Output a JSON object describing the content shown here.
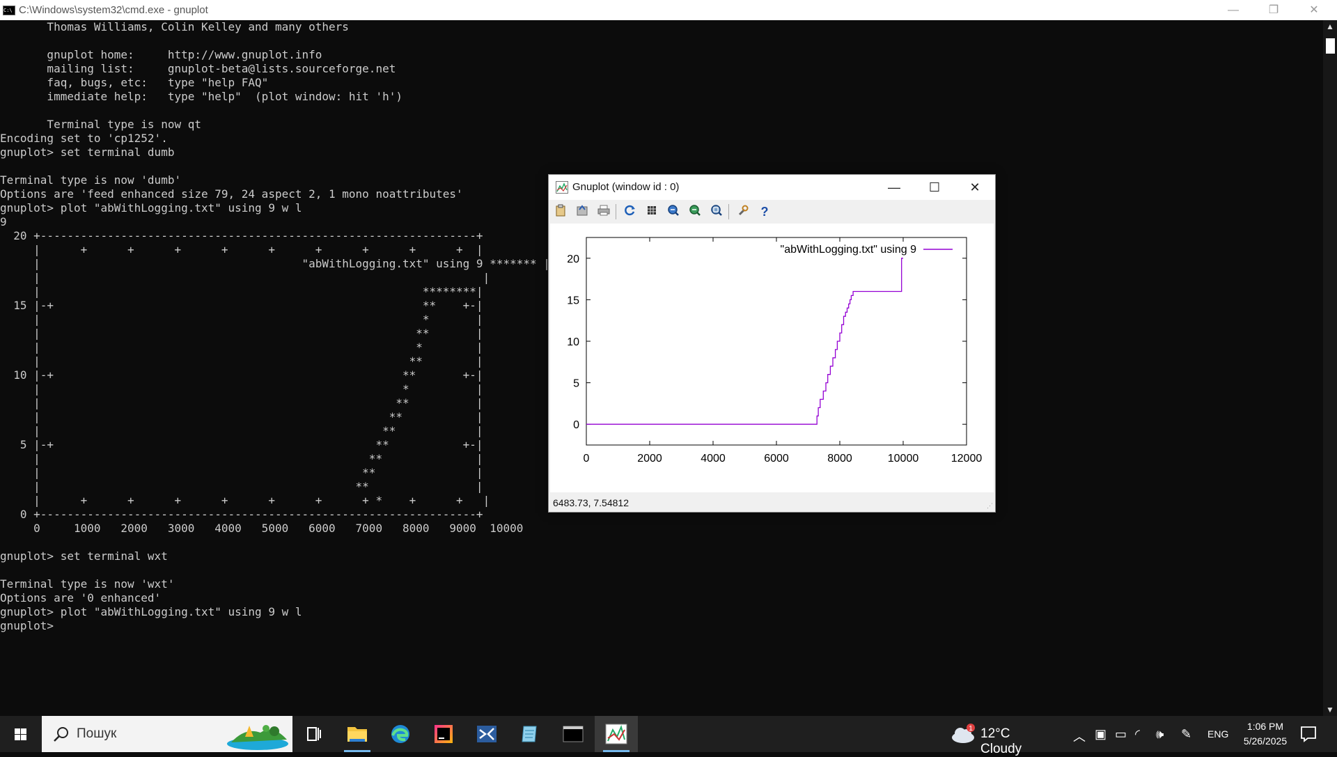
{
  "cmd": {
    "title": "C:\\Windows\\system32\\cmd.exe - gnuplot",
    "icon": "cmd-icon",
    "icon_text": "C:\\",
    "minimize": "—",
    "restore": "❐",
    "close": "✕",
    "console": "       Thomas Williams, Colin Kelley and many others\n\n       gnuplot home:     http://www.gnuplot.info\n       mailing list:     gnuplot-beta@lists.sourceforge.net\n       faq, bugs, etc:   type \"help FAQ\"\n       immediate help:   type \"help\"  (plot window: hit 'h')\n\n       Terminal type is now qt\nEncoding set to 'cp1252'.\ngnuplot> set terminal dumb\n\nTerminal type is now 'dumb'\nOptions are 'feed enhanced size 79, 24 aspect 2, 1 mono noattributes'\ngnuplot> plot \"abWithLogging.txt\" using 9 w l\n9\n  20 +-----------------------------------------------------------------+\n     |      +      +      +      +      +      +      +      +      +  |\n     |                                       \"abWithLogging.txt\" using 9 ******* |\n     |                                                                  |\n     |                                                         ********|\n  15 |-+                                                       **    +-|\n     |                                                         *       |\n     |                                                        **       |\n     |                                                        *        |\n     |                                                       **        |\n  10 |-+                                                    **       +-|\n     |                                                      *          |\n     |                                                     **          |\n     |                                                    **           |\n     |                                                   **            |\n   5 |-+                                                **           +-|\n     |                                                 **              |\n     |                                                **               |\n     |                                               **                |\n     |      +      +      +      +      +      +      + *    +      +   |\n   0 +-----------------------------------------------------------------+\n     0     1000   2000   3000   4000   5000   6000   7000   8000   9000  10000\n\ngnuplot> set terminal wxt\n\nTerminal type is now 'wxt'\nOptions are '0 enhanced'\ngnuplot> plot \"abWithLogging.txt\" using 9 w l\ngnuplot> "
  },
  "gnuplot_window": {
    "title": "Gnuplot (window id : 0)",
    "minimize": "—",
    "maximize": "☐",
    "close": "✕",
    "toolbar": [
      "copy-clipboard-icon",
      "export-icon",
      "print-icon",
      "replot-icon",
      "grid-icon",
      "zoom-previous-icon",
      "zoom-next-icon",
      "autoscale-icon",
      "settings-icon",
      "help-icon"
    ],
    "help_glyph": "?",
    "status": "6483.73,  7.54812",
    "line_color": "#9400d3"
  },
  "chart_data": {
    "type": "line",
    "title": "",
    "xlabel": "",
    "ylabel": "",
    "xlim": [
      0,
      12000
    ],
    "ylim": [
      -2.5,
      22.5
    ],
    "xticks": [
      0,
      2000,
      4000,
      6000,
      8000,
      10000,
      12000
    ],
    "yticks": [
      0,
      5,
      10,
      15,
      20
    ],
    "legend": "top-right",
    "series": [
      {
        "name": "\"abWithLogging.txt\" using 9",
        "color": "#9400d3",
        "x": [
          0,
          7280,
          7280,
          7320,
          7320,
          7380,
          7380,
          7480,
          7480,
          7560,
          7560,
          7620,
          7620,
          7700,
          7700,
          7780,
          7780,
          7860,
          7860,
          7920,
          7920,
          8000,
          8000,
          8060,
          8060,
          8120,
          8120,
          8180,
          8180,
          8230,
          8230,
          8280,
          8280,
          8320,
          8320,
          8360,
          8360,
          8420,
          8420,
          8480,
          8480,
          8540,
          8540,
          8600,
          8600,
          8660,
          8660,
          8720,
          8720,
          8800,
          8800,
          9950,
          9950,
          9999
        ],
        "y": [
          0,
          0,
          1,
          1,
          2,
          2,
          3,
          3,
          4,
          4,
          5,
          5,
          6,
          6,
          7,
          7,
          8,
          8,
          9,
          9,
          10,
          10,
          11,
          11,
          12,
          12,
          13,
          13,
          13.5,
          13.5,
          14,
          14,
          14.5,
          14.5,
          15,
          15,
          15.5,
          15.5,
          16,
          16,
          16,
          16,
          16,
          16,
          16,
          16,
          16,
          16,
          16,
          16,
          16,
          16,
          20,
          20
        ]
      }
    ]
  },
  "taskbar": {
    "search_placeholder": "Пошук",
    "apps": [
      "task-view-icon",
      "file-explorer-icon",
      "edge-icon",
      "jetbrains-icon",
      "visual-studio-code-icon",
      "notepad-icon",
      "terminal-icon",
      "gnuplot-icon"
    ],
    "weather": "12°C  Cloudy",
    "weather_badge": "1",
    "language": "ENG",
    "time": "1:06 PM",
    "date": "5/26/2025"
  }
}
